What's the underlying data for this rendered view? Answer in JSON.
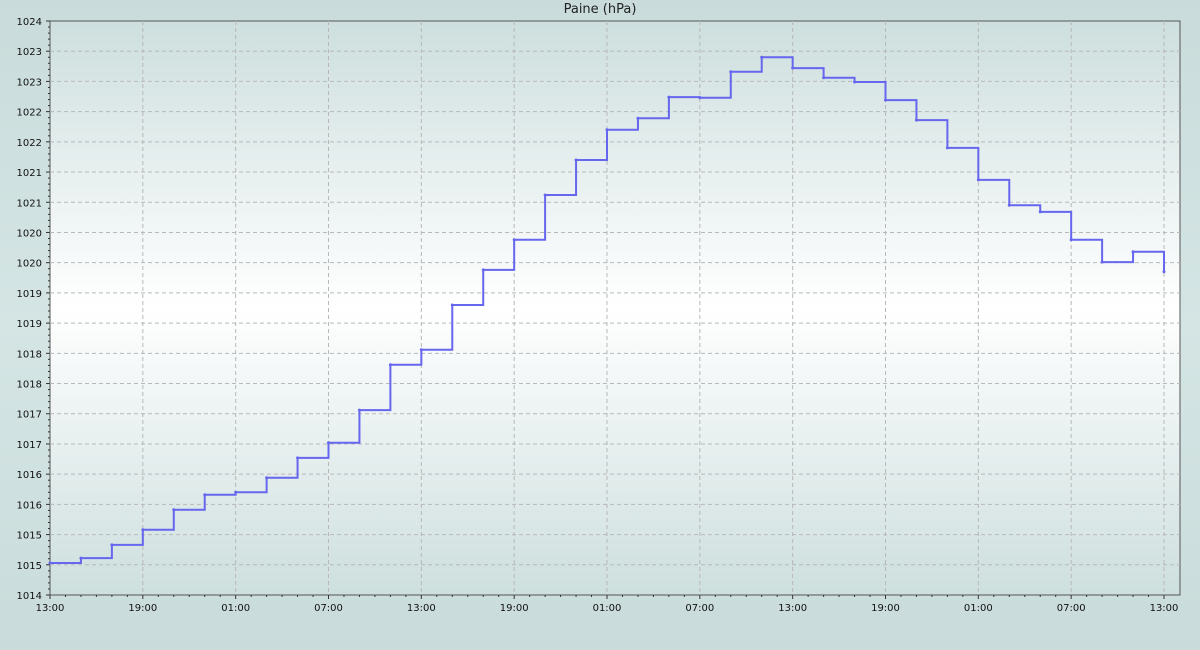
{
  "chart_data": {
    "type": "line",
    "title": "Paine (hPa)",
    "xlabel": "",
    "ylabel": "",
    "ylim": [
      1014.25,
      1023.75
    ],
    "y_tick_labels": [
      "1014",
      "1015",
      "1015",
      "1016",
      "1016",
      "1017",
      "1017",
      "1018",
      "1018",
      "1019",
      "1019",
      "1020",
      "1020",
      "1021",
      "1021",
      "1022",
      "1022",
      "1023",
      "1023",
      "1024"
    ],
    "x_tick_labels": [
      "13:00",
      "19:00",
      "01:00",
      "07:00",
      "13:00",
      "19:00",
      "01:00",
      "07:00",
      "13:00",
      "19:00",
      "01:00",
      "07:00",
      "13:00"
    ],
    "grid": true,
    "line_style": "step",
    "series_color": "#6666ee",
    "x": [
      "13:00",
      "15:00",
      "17:00",
      "19:00",
      "21:00",
      "23:00",
      "01:00",
      "03:00",
      "05:00",
      "07:00",
      "09:00",
      "11:00",
      "13:00",
      "15:00",
      "17:00",
      "19:00",
      "21:00",
      "23:00",
      "01:00",
      "03:00",
      "05:00",
      "07:00",
      "09:00",
      "11:00",
      "13:00",
      "15:00",
      "17:00",
      "19:00",
      "21:00",
      "23:00",
      "01:00",
      "03:00",
      "05:00",
      "07:00",
      "09:00",
      "11:00",
      "13:00"
    ],
    "values": [
      1014.78,
      1014.86,
      1015.08,
      1015.33,
      1015.66,
      1015.91,
      1015.95,
      1016.19,
      1016.52,
      1016.77,
      1017.31,
      1018.06,
      1018.31,
      1019.05,
      1019.63,
      1020.13,
      1020.87,
      1021.45,
      1021.95,
      1022.14,
      1022.49,
      1022.48,
      1022.91,
      1023.15,
      1022.97,
      1022.81,
      1022.74,
      1022.44,
      1022.11,
      1021.65,
      1021.12,
      1020.7,
      1020.59,
      1020.13,
      1019.76,
      1019.93,
      1019.6
    ]
  }
}
